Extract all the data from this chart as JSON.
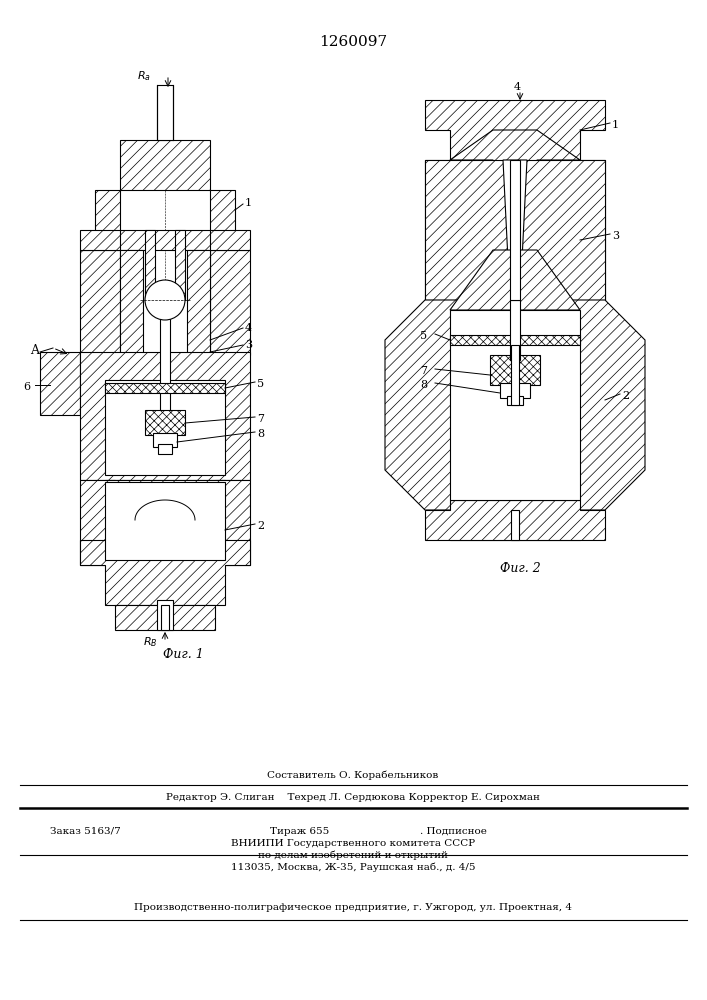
{
  "title_number": "1260097",
  "fig1_caption": "Фиг. 1",
  "fig2_caption": "Фиг. 2",
  "bg": "#ffffff",
  "footer": {
    "line1": "Составитель О. Корабельников",
    "line2": "Редактор Э. Слиган    Техред Л. Сердюкова Корректор Е. Сирохман",
    "order": "Заказ 5163/7",
    "tirazh": "Тираж 655",
    "podpisnoe": ". Подписное",
    "vniip1": "ВНИИПИ Государственного комитета СССР",
    "vniip2": "по делам изобретений и открытий",
    "address": "113035, Москва, Ж-35, Раушская наб., д. 4/5",
    "plant": "Производственно-полиграфическое предприятие, г. Ужгород, ул. Проектная, 4"
  }
}
